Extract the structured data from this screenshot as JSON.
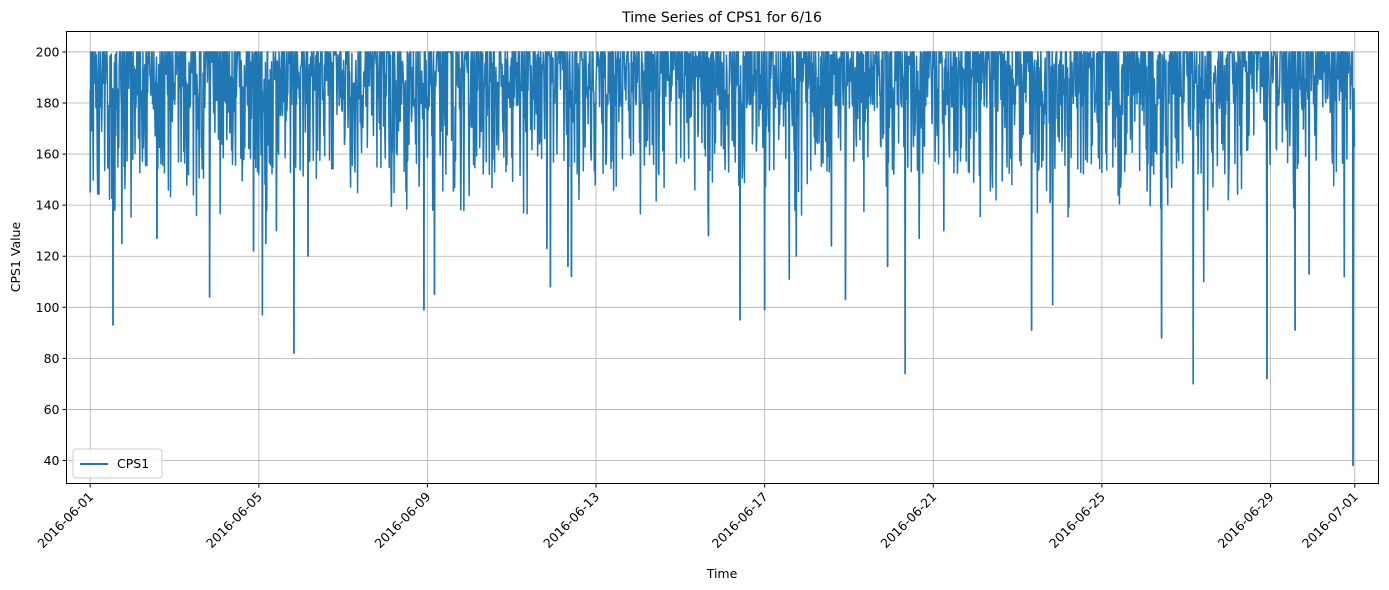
{
  "chart_data": {
    "type": "line",
    "title": "Time Series of CPS1 for 6/16",
    "xlabel": "Time",
    "ylabel": "CPS1 Value",
    "xlim": [
      "2016-05-31T10:30",
      "2016-07-01T13:30"
    ],
    "ylim": [
      31,
      208
    ],
    "grid": true,
    "legend_position": "lower-left",
    "x_ticks": [
      "2016-06-01",
      "2016-06-05",
      "2016-06-09",
      "2016-06-13",
      "2016-06-17",
      "2016-06-21",
      "2016-06-25",
      "2016-06-29",
      "2016-07-01"
    ],
    "y_ticks": [
      40,
      60,
      80,
      100,
      120,
      140,
      160,
      180,
      200
    ],
    "y_tick_labels": [
      "40",
      "60",
      "80",
      "100",
      "120",
      "140",
      "160",
      "180",
      "200"
    ],
    "series": [
      {
        "name": "CPS1",
        "color": "#1f77b4",
        "values_note_free": true,
        "x_start": "2016-06-01T00:00",
        "x_end": "2016-06-30T23:45",
        "baseline_max": 200,
        "notable_points": [
          {
            "x": "2016-06-01T00:00",
            "y": 145
          },
          {
            "x": "2016-06-01T14:00",
            "y": 138
          },
          {
            "x": "2016-06-01T13:00",
            "y": 93
          },
          {
            "x": "2016-06-01T18:00",
            "y": 125
          },
          {
            "x": "2016-06-02T14:00",
            "y": 127
          },
          {
            "x": "2016-06-03T20:00",
            "y": 104
          },
          {
            "x": "2016-06-04T21:00",
            "y": 122
          },
          {
            "x": "2016-06-05T04:00",
            "y": 125
          },
          {
            "x": "2016-06-05T02:00",
            "y": 97
          },
          {
            "x": "2016-06-05T10:00",
            "y": 130
          },
          {
            "x": "2016-06-05T20:00",
            "y": 82
          },
          {
            "x": "2016-06-06T04:00",
            "y": 120
          },
          {
            "x": "2016-06-08T22:00",
            "y": 99
          },
          {
            "x": "2016-06-09T04:00",
            "y": 105
          },
          {
            "x": "2016-06-11T20:00",
            "y": 123
          },
          {
            "x": "2016-06-11T22:00",
            "y": 108
          },
          {
            "x": "2016-06-12T08:00",
            "y": 116
          },
          {
            "x": "2016-06-12T10:00",
            "y": 112
          },
          {
            "x": "2016-06-15T16:00",
            "y": 128
          },
          {
            "x": "2016-06-16T10:00",
            "y": 95
          },
          {
            "x": "2016-06-17T00:00",
            "y": 99
          },
          {
            "x": "2016-06-17T14:00",
            "y": 111
          },
          {
            "x": "2016-06-17T18:00",
            "y": 120
          },
          {
            "x": "2016-06-18T14:00",
            "y": 124
          },
          {
            "x": "2016-06-18T22:00",
            "y": 103
          },
          {
            "x": "2016-06-19T22:00",
            "y": 116
          },
          {
            "x": "2016-06-20T08:00",
            "y": 74
          },
          {
            "x": "2016-06-20T16:00",
            "y": 127
          },
          {
            "x": "2016-06-21T06:00",
            "y": 130
          },
          {
            "x": "2016-06-23T08:00",
            "y": 91
          },
          {
            "x": "2016-06-23T20:00",
            "y": 101
          },
          {
            "x": "2016-06-26T10:00",
            "y": 88
          },
          {
            "x": "2016-06-27T04:00",
            "y": 70
          },
          {
            "x": "2016-06-27T10:00",
            "y": 110
          },
          {
            "x": "2016-06-28T22:00",
            "y": 72
          },
          {
            "x": "2016-06-29T14:00",
            "y": 91
          },
          {
            "x": "2016-06-29T22:00",
            "y": 113
          },
          {
            "x": "2016-06-30T18:00",
            "y": 112
          },
          {
            "x": "2016-06-30T23:00",
            "y": 38
          }
        ]
      }
    ]
  }
}
